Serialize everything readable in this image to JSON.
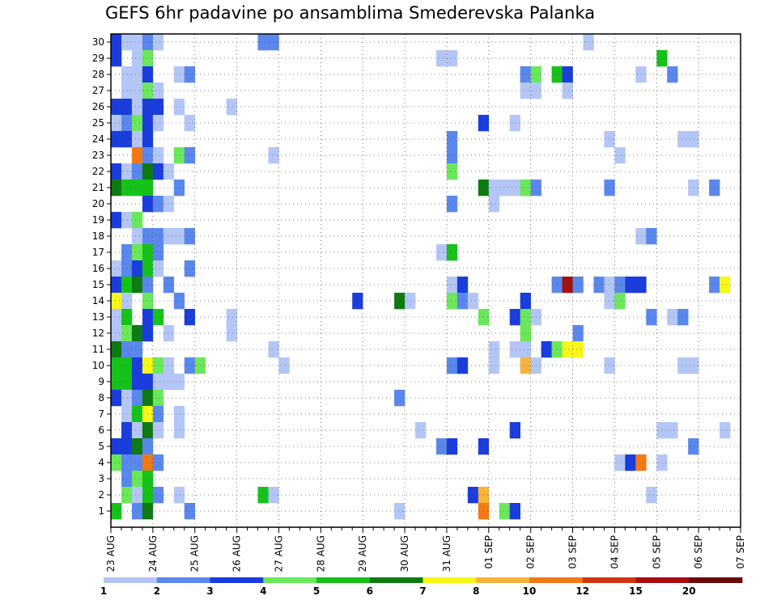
{
  "chart_data": {
    "type": "heatmap",
    "title": "GEFS 6hr padavine po ansamblima Smederevska Palanka",
    "xlabel": "",
    "ylabel": "",
    "x_tick_labels": [
      "23 AUG",
      "24 AUG",
      "25 AUG",
      "26 AUG",
      "27 AUG",
      "28 AUG",
      "29 AUG",
      "30 AUG",
      "31 AUG",
      "01 SEP",
      "02 SEP",
      "03 SEP",
      "04 SEP",
      "05 SEP",
      "06 SEP",
      "07 SEP"
    ],
    "y_tick_labels": [
      "1",
      "2",
      "3",
      "4",
      "5",
      "6",
      "7",
      "8",
      "9",
      "10",
      "11",
      "12",
      "13",
      "14",
      "15",
      "16",
      "17",
      "18",
      "19",
      "20",
      "21",
      "22",
      "23",
      "24",
      "25",
      "26",
      "27",
      "28",
      "29",
      "30"
    ],
    "time_steps_per_day": 4,
    "n_steps": 60,
    "n_members": 30,
    "grid": true,
    "colorbar": {
      "position": "bottom",
      "levels": [
        1,
        2,
        3,
        4,
        5,
        6,
        7,
        8,
        10,
        12,
        15,
        20
      ],
      "level_labels": [
        "1",
        "2",
        "3",
        "4",
        "5",
        "6",
        "7",
        "8",
        "10",
        "12",
        "15",
        "20"
      ],
      "colors": [
        "#b3c6f6",
        "#5a87ec",
        "#1a3ddc",
        "#6ae85a",
        "#16c21a",
        "#0e7a12",
        "#f7f718",
        "#f7b33c",
        "#f27a16",
        "#d23412",
        "#a31010",
        "#6a0a0a"
      ]
    },
    "cells_format": "member, time step index (0 = 23 AUG 00z, 6h steps), color class index into colorbar.colors",
    "cells": [
      [
        30,
        0,
        2
      ],
      [
        30,
        1,
        0
      ],
      [
        30,
        2,
        0
      ],
      [
        30,
        3,
        1
      ],
      [
        30,
        4,
        0
      ],
      [
        30,
        14,
        1
      ],
      [
        30,
        15,
        1
      ],
      [
        30,
        45,
        0
      ],
      [
        29,
        0,
        2
      ],
      [
        29,
        2,
        0
      ],
      [
        29,
        3,
        3
      ],
      [
        29,
        31,
        0
      ],
      [
        29,
        32,
        0
      ],
      [
        29,
        52,
        4
      ],
      [
        28,
        1,
        0
      ],
      [
        28,
        2,
        0
      ],
      [
        28,
        3,
        2
      ],
      [
        28,
        6,
        0
      ],
      [
        28,
        7,
        1
      ],
      [
        28,
        39,
        1
      ],
      [
        28,
        40,
        3
      ],
      [
        28,
        42,
        4
      ],
      [
        28,
        43,
        2
      ],
      [
        28,
        50,
        0
      ],
      [
        28,
        53,
        1
      ],
      [
        27,
        1,
        0
      ],
      [
        27,
        2,
        0
      ],
      [
        27,
        3,
        3
      ],
      [
        27,
        4,
        0
      ],
      [
        27,
        39,
        0
      ],
      [
        27,
        40,
        0
      ],
      [
        27,
        43,
        0
      ],
      [
        26,
        0,
        2
      ],
      [
        26,
        1,
        2
      ],
      [
        26,
        2,
        0
      ],
      [
        26,
        3,
        2
      ],
      [
        26,
        4,
        2
      ],
      [
        26,
        6,
        0
      ],
      [
        26,
        11,
        0
      ],
      [
        25,
        0,
        0
      ],
      [
        25,
        1,
        1
      ],
      [
        25,
        2,
        3
      ],
      [
        25,
        3,
        2
      ],
      [
        25,
        4,
        0
      ],
      [
        25,
        7,
        0
      ],
      [
        25,
        35,
        2
      ],
      [
        25,
        38,
        0
      ],
      [
        24,
        0,
        2
      ],
      [
        24,
        1,
        2
      ],
      [
        24,
        2,
        0
      ],
      [
        24,
        3,
        2
      ],
      [
        24,
        32,
        1
      ],
      [
        24,
        47,
        0
      ],
      [
        24,
        54,
        0
      ],
      [
        24,
        55,
        0
      ],
      [
        23,
        2,
        8
      ],
      [
        23,
        3,
        1
      ],
      [
        23,
        4,
        0
      ],
      [
        23,
        6,
        3
      ],
      [
        23,
        7,
        1
      ],
      [
        23,
        15,
        0
      ],
      [
        23,
        32,
        1
      ],
      [
        23,
        48,
        0
      ],
      [
        22,
        0,
        2
      ],
      [
        22,
        1,
        0
      ],
      [
        22,
        2,
        1
      ],
      [
        22,
        3,
        5
      ],
      [
        22,
        4,
        2
      ],
      [
        22,
        5,
        0
      ],
      [
        22,
        32,
        3
      ],
      [
        21,
        0,
        5
      ],
      [
        21,
        1,
        4
      ],
      [
        21,
        2,
        4
      ],
      [
        21,
        3,
        4
      ],
      [
        21,
        6,
        1
      ],
      [
        21,
        35,
        5
      ],
      [
        21,
        36,
        0
      ],
      [
        21,
        37,
        0
      ],
      [
        21,
        38,
        0
      ],
      [
        21,
        39,
        3
      ],
      [
        21,
        40,
        1
      ],
      [
        21,
        47,
        1
      ],
      [
        21,
        55,
        0
      ],
      [
        21,
        57,
        1
      ],
      [
        20,
        3,
        2
      ],
      [
        20,
        4,
        1
      ],
      [
        20,
        5,
        0
      ],
      [
        20,
        32,
        1
      ],
      [
        20,
        36,
        0
      ],
      [
        19,
        0,
        2
      ],
      [
        19,
        1,
        0
      ],
      [
        19,
        2,
        3
      ],
      [
        18,
        2,
        0
      ],
      [
        18,
        3,
        1
      ],
      [
        18,
        4,
        1
      ],
      [
        18,
        5,
        0
      ],
      [
        18,
        6,
        0
      ],
      [
        18,
        7,
        1
      ],
      [
        18,
        50,
        0
      ],
      [
        18,
        51,
        1
      ],
      [
        17,
        1,
        1
      ],
      [
        17,
        2,
        3
      ],
      [
        17,
        3,
        4
      ],
      [
        17,
        4,
        1
      ],
      [
        17,
        31,
        0
      ],
      [
        17,
        32,
        4
      ],
      [
        16,
        0,
        0
      ],
      [
        16,
        1,
        1
      ],
      [
        16,
        2,
        2
      ],
      [
        16,
        3,
        4
      ],
      [
        16,
        4,
        0
      ],
      [
        16,
        7,
        1
      ],
      [
        15,
        0,
        2
      ],
      [
        15,
        1,
        4
      ],
      [
        15,
        2,
        5
      ],
      [
        15,
        3,
        1
      ],
      [
        15,
        5,
        1
      ],
      [
        15,
        32,
        0
      ],
      [
        15,
        33,
        2
      ],
      [
        15,
        42,
        1
      ],
      [
        15,
        43,
        10
      ],
      [
        15,
        44,
        1
      ],
      [
        15,
        46,
        1
      ],
      [
        15,
        47,
        0
      ],
      [
        15,
        48,
        1
      ],
      [
        15,
        49,
        2
      ],
      [
        15,
        50,
        2
      ],
      [
        15,
        57,
        1
      ],
      [
        15,
        58,
        6
      ],
      [
        14,
        0,
        6
      ],
      [
        14,
        1,
        0
      ],
      [
        14,
        3,
        3
      ],
      [
        14,
        6,
        1
      ],
      [
        14,
        23,
        2
      ],
      [
        14,
        27,
        5
      ],
      [
        14,
        28,
        0
      ],
      [
        14,
        32,
        3
      ],
      [
        14,
        33,
        1
      ],
      [
        14,
        34,
        0
      ],
      [
        14,
        39,
        2
      ],
      [
        14,
        47,
        0
      ],
      [
        14,
        48,
        3
      ],
      [
        13,
        0,
        0
      ],
      [
        13,
        1,
        4
      ],
      [
        13,
        3,
        2
      ],
      [
        13,
        4,
        4
      ],
      [
        13,
        7,
        2
      ],
      [
        13,
        11,
        0
      ],
      [
        13,
        35,
        3
      ],
      [
        13,
        38,
        2
      ],
      [
        13,
        39,
        3
      ],
      [
        13,
        40,
        0
      ],
      [
        13,
        51,
        1
      ],
      [
        13,
        53,
        0
      ],
      [
        13,
        54,
        1
      ],
      [
        12,
        0,
        0
      ],
      [
        12,
        1,
        3
      ],
      [
        12,
        2,
        5
      ],
      [
        12,
        3,
        2
      ],
      [
        12,
        5,
        0
      ],
      [
        12,
        11,
        0
      ],
      [
        12,
        39,
        3
      ],
      [
        12,
        44,
        1
      ],
      [
        11,
        0,
        5
      ],
      [
        11,
        1,
        1
      ],
      [
        11,
        2,
        1
      ],
      [
        11,
        15,
        0
      ],
      [
        11,
        36,
        0
      ],
      [
        11,
        38,
        0
      ],
      [
        11,
        39,
        0
      ],
      [
        11,
        41,
        2
      ],
      [
        11,
        42,
        3
      ],
      [
        11,
        43,
        6
      ],
      [
        11,
        44,
        6
      ],
      [
        10,
        0,
        4
      ],
      [
        10,
        1,
        4
      ],
      [
        10,
        2,
        2
      ],
      [
        10,
        3,
        6
      ],
      [
        10,
        4,
        3
      ],
      [
        10,
        5,
        0
      ],
      [
        10,
        7,
        1
      ],
      [
        10,
        8,
        3
      ],
      [
        10,
        16,
        0
      ],
      [
        10,
        32,
        1
      ],
      [
        10,
        33,
        2
      ],
      [
        10,
        36,
        0
      ],
      [
        10,
        39,
        7
      ],
      [
        10,
        40,
        0
      ],
      [
        10,
        47,
        0
      ],
      [
        10,
        54,
        0
      ],
      [
        10,
        55,
        0
      ],
      [
        9,
        0,
        4
      ],
      [
        9,
        1,
        4
      ],
      [
        9,
        2,
        2
      ],
      [
        9,
        3,
        2
      ],
      [
        9,
        4,
        0
      ],
      [
        9,
        5,
        0
      ],
      [
        9,
        6,
        0
      ],
      [
        8,
        0,
        2
      ],
      [
        8,
        1,
        0
      ],
      [
        8,
        2,
        1
      ],
      [
        8,
        3,
        5
      ],
      [
        8,
        4,
        3
      ],
      [
        8,
        27,
        1
      ],
      [
        7,
        1,
        0
      ],
      [
        7,
        2,
        4
      ],
      [
        7,
        3,
        6
      ],
      [
        7,
        4,
        1
      ],
      [
        7,
        6,
        0
      ],
      [
        6,
        1,
        2
      ],
      [
        6,
        2,
        0
      ],
      [
        6,
        3,
        5
      ],
      [
        6,
        4,
        0
      ],
      [
        6,
        6,
        0
      ],
      [
        6,
        29,
        0
      ],
      [
        6,
        38,
        2
      ],
      [
        6,
        52,
        0
      ],
      [
        6,
        53,
        0
      ],
      [
        6,
        58,
        0
      ],
      [
        5,
        0,
        2
      ],
      [
        5,
        1,
        2
      ],
      [
        5,
        2,
        5
      ],
      [
        5,
        3,
        1
      ],
      [
        5,
        31,
        1
      ],
      [
        5,
        32,
        2
      ],
      [
        5,
        35,
        2
      ],
      [
        5,
        55,
        1
      ],
      [
        4,
        0,
        3
      ],
      [
        4,
        1,
        1
      ],
      [
        4,
        2,
        1
      ],
      [
        4,
        3,
        8
      ],
      [
        4,
        4,
        1
      ],
      [
        4,
        48,
        0
      ],
      [
        4,
        49,
        2
      ],
      [
        4,
        50,
        8
      ],
      [
        4,
        52,
        0
      ],
      [
        3,
        1,
        1
      ],
      [
        3,
        2,
        3
      ],
      [
        3,
        3,
        4
      ],
      [
        2,
        1,
        3
      ],
      [
        2,
        2,
        0
      ],
      [
        2,
        3,
        4
      ],
      [
        2,
        4,
        1
      ],
      [
        2,
        6,
        0
      ],
      [
        2,
        14,
        4
      ],
      [
        2,
        15,
        0
      ],
      [
        2,
        34,
        2
      ],
      [
        2,
        35,
        7
      ],
      [
        2,
        51,
        0
      ],
      [
        1,
        0,
        4
      ],
      [
        1,
        2,
        1
      ],
      [
        1,
        3,
        5
      ],
      [
        1,
        7,
        1
      ],
      [
        1,
        27,
        0
      ],
      [
        1,
        35,
        8
      ],
      [
        1,
        37,
        3
      ],
      [
        1,
        38,
        2
      ]
    ]
  }
}
